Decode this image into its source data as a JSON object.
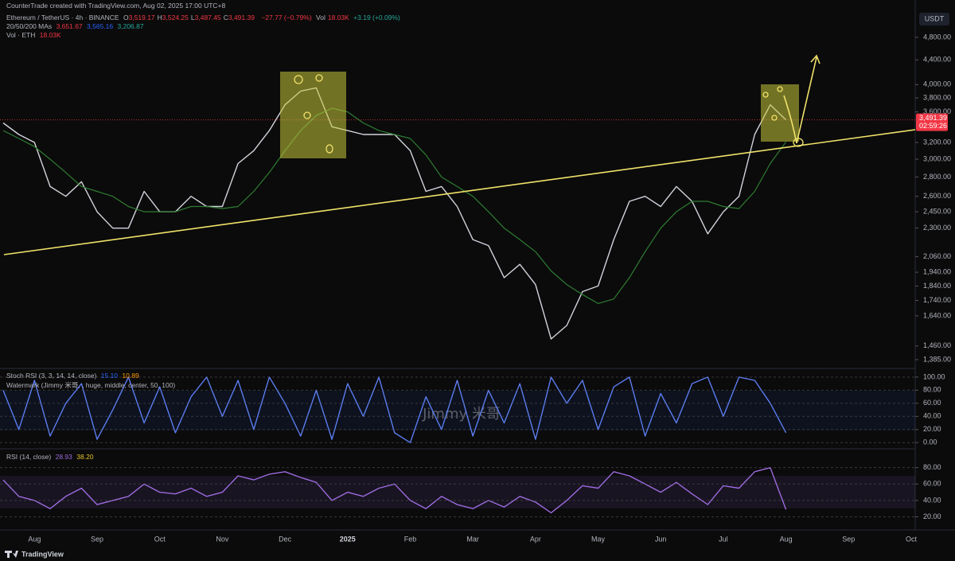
{
  "header": {
    "credit": "CounterTrade created with TradingView.com, Aug 02, 2025 17:00 UTC+8",
    "currency": "USDT",
    "footer": "TradingView"
  },
  "legend": {
    "ohlc": [
      {
        "label": "O",
        "value": "3,519.17"
      },
      {
        "label": "H",
        "value": "3,524.25"
      },
      {
        "label": "L",
        "value": "3,487.45"
      },
      {
        "label": "C",
        "value": "3,491.39"
      }
    ],
    "change": "−27.77 (−0.79%)",
    "vol_label": "Vol",
    "vol_value": "18.03K",
    "vol_change": "+3.19 (+0.09%)",
    "mas_title": "20/50/200 MAs",
    "mas_values": [
      "3,651.67",
      "3,565.16",
      "3,206.87"
    ],
    "volume_title": "Vol · ETH",
    "volume_value": "18.03K"
  },
  "watermark": {
    "title": "Watermark (Jimmy 米哥, , huge, middle, center, 50, 100)",
    "text": "Jimmy 米哥"
  },
  "chart_data": [
    {
      "type": "line",
      "title": "Ethereum / TetherUS · 4h · BINANCE",
      "log": true,
      "grid": false,
      "categories": [
        null,
        null,
        "Aug",
        null,
        null,
        null,
        "Sep",
        null,
        null,
        null,
        "Oct",
        null,
        null,
        null,
        "Nov",
        null,
        null,
        null,
        "Dec",
        null,
        null,
        null,
        "2025",
        null,
        null,
        null,
        "Feb",
        null,
        null,
        null,
        "Mar",
        null,
        null,
        null,
        "Apr",
        null,
        null,
        null,
        "May",
        null,
        null,
        null,
        "Jun",
        null,
        null,
        null,
        "Jul",
        null,
        null,
        null,
        "Aug",
        null,
        null,
        null,
        "Sep",
        null,
        null,
        null,
        "Oct"
      ],
      "series": [
        {
          "color": "#d1d4dc",
          "values": [
            3450,
            3300,
            3200,
            2700,
            2600,
            2750,
            2450,
            2300,
            2300,
            2650,
            2450,
            2450,
            2600,
            2500,
            2500,
            2950,
            3100,
            3350,
            3700,
            3900,
            3950,
            3400,
            3350,
            3300,
            3300,
            3300,
            3100,
            2650,
            2700,
            2500,
            2200,
            2150,
            1900,
            2000,
            1850,
            1500,
            1580,
            1800,
            1840,
            2200,
            2550,
            2600,
            2500,
            2700,
            2550,
            2250,
            2450,
            2600,
            3300,
            3700,
            3491.39,
            null,
            null,
            null,
            null,
            null,
            null,
            null,
            null
          ]
        },
        {
          "color": "#2e7d32",
          "values": [
            3350,
            3250,
            3150,
            3000,
            2850,
            2700,
            2650,
            2600,
            2500,
            2450,
            2450,
            2450,
            2500,
            2500,
            2480,
            2500,
            2650,
            2850,
            3100,
            3350,
            3550,
            3650,
            3600,
            3450,
            3350,
            3300,
            3250,
            3050,
            2800,
            2700,
            2600,
            2450,
            2300,
            2200,
            2100,
            1950,
            1850,
            1780,
            1720,
            1750,
            1900,
            2100,
            2300,
            2450,
            2550,
            2550,
            2500,
            2480,
            2650,
            2950,
            3206.87,
            null,
            null,
            null,
            null,
            null,
            null,
            null,
            null
          ]
        }
      ],
      "ylim": [
        1343,
        5375
      ],
      "yticks": [
        {
          "value": 4800,
          "label": "4,800.00"
        },
        {
          "value": 4400,
          "label": "4,400.00"
        },
        {
          "value": 4000,
          "label": "4,000.00"
        },
        {
          "value": 3800,
          "label": "3,800.00"
        },
        {
          "value": 3600,
          "label": "3,600.00"
        },
        {
          "value": 3200,
          "label": "3,200.00"
        },
        {
          "value": 3000,
          "label": "3,000.00"
        },
        {
          "value": 2800,
          "label": "2,800.00"
        },
        {
          "value": 2600,
          "label": "2,600.00"
        },
        {
          "value": 2450,
          "label": "2,450.00"
        },
        {
          "value": 2300,
          "label": "2,300.00"
        },
        {
          "value": 2060,
          "label": "2,060.00"
        },
        {
          "value": 1940,
          "label": "1,940.00"
        },
        {
          "value": 1840,
          "label": "1,840.00"
        },
        {
          "value": 1740,
          "label": "1,740.00"
        },
        {
          "value": 1640,
          "label": "1,640.00"
        },
        {
          "value": 1460,
          "label": "1,460.00"
        },
        {
          "value": 1385,
          "label": "1,385.00"
        }
      ],
      "last_price": 3491.39,
      "last_price_label": "3,491.39",
      "countdown": "02:59:26"
    },
    {
      "type": "line",
      "title": "Stoch RSI (3, 3, 14, 14, close)",
      "readouts": [
        "15.10",
        "10.89"
      ],
      "grid": true,
      "series": [
        {
          "color": "#5b7cf0",
          "values": [
            80,
            20,
            95,
            10,
            60,
            90,
            5,
            50,
            100,
            30,
            85,
            15,
            70,
            100,
            40,
            95,
            20,
            100,
            60,
            10,
            80,
            5,
            90,
            40,
            100,
            15,
            0,
            70,
            20,
            95,
            10,
            80,
            30,
            90,
            5,
            100,
            60,
            95,
            20,
            85,
            100,
            10,
            75,
            30,
            90,
            100,
            40,
            100,
            95,
            60,
            15.1,
            null,
            null,
            null,
            null,
            null,
            null,
            null,
            null
          ]
        }
      ],
      "ylim": [
        -7,
        112
      ],
      "yticks": [
        {
          "value": 100,
          "label": "100.00"
        },
        {
          "value": 80,
          "label": "80.00"
        },
        {
          "value": 60,
          "label": "60.00"
        },
        {
          "value": 40,
          "label": "40.00"
        },
        {
          "value": 20,
          "label": "20.00"
        },
        {
          "value": 0,
          "label": "0.00"
        }
      ]
    },
    {
      "type": "line",
      "title": "RSI (14, close)",
      "readouts": [
        "28.93",
        "38.20"
      ],
      "grid": true,
      "series": [
        {
          "color": "#9c6ade",
          "values": [
            65,
            45,
            40,
            30,
            45,
            55,
            35,
            40,
            45,
            60,
            50,
            48,
            55,
            45,
            50,
            70,
            65,
            72,
            75,
            68,
            62,
            40,
            50,
            45,
            55,
            60,
            40,
            30,
            45,
            35,
            30,
            40,
            32,
            45,
            38,
            25,
            40,
            58,
            55,
            75,
            70,
            60,
            50,
            62,
            48,
            35,
            58,
            55,
            75,
            80,
            28.93,
            null,
            null,
            null,
            null,
            null,
            null,
            null,
            null
          ]
        }
      ],
      "ylim": [
        6,
        101
      ],
      "yticks": [
        {
          "value": 80,
          "label": "80.00"
        },
        {
          "value": 60,
          "label": "60.00"
        },
        {
          "value": 40,
          "label": "40.00"
        },
        {
          "value": 20,
          "label": "20.00"
        }
      ]
    }
  ]
}
